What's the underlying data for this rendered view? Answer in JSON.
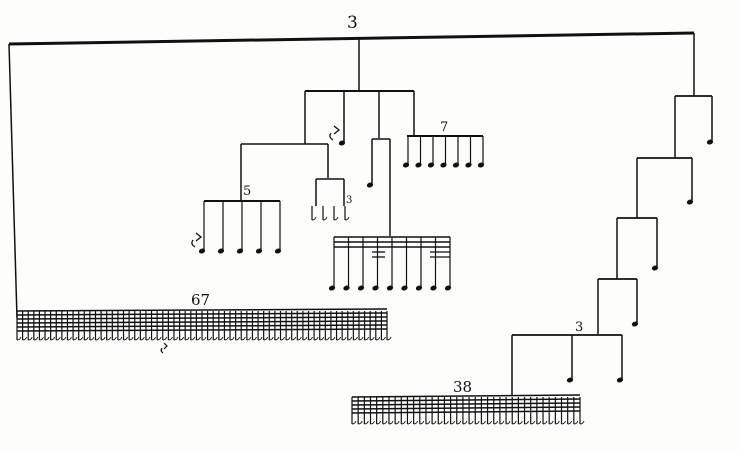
{
  "score": {
    "type": "rhythm-tree",
    "labels": {
      "root_tuplet": "3",
      "left_tuplet_five": "5",
      "small_tuplet_three": "3",
      "right_tuplet_seven": "7",
      "long_group_count": "67",
      "cascade_tuplet_three": "3",
      "bottom_group_count": "38"
    },
    "groups": {
      "long_group_notes": 67,
      "bottom_group_notes": 38,
      "five_group_notes": 5,
      "seven_group_notes": 7,
      "small_group_notes": 4,
      "dense_group_notes": 9,
      "cascade_steps": 4
    },
    "symbols": {
      "rest": "rest-icon"
    }
  }
}
